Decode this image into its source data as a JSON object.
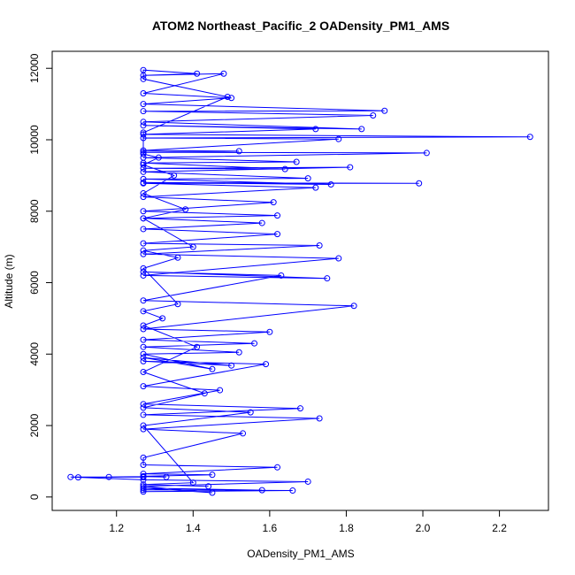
{
  "chart_data": {
    "type": "line",
    "title": "ATOM2 Northeast_Pacific_2 OADensity_PM1_AMS",
    "x_label": "OADensity_PM1_AMS",
    "y_label": "Altitude (m)",
    "color": "#0000ff",
    "markers": true,
    "xlim": [
      1.032,
      2.328
    ],
    "ylim": [
      -376,
      12476
    ],
    "xticks": [
      1.2,
      1.4,
      1.6,
      1.8,
      {
        "value": 2,
        "label": "2.0"
      },
      2.2
    ],
    "yticks": [
      0,
      2000,
      4000,
      6000,
      8000,
      10000,
      12000
    ],
    "x": [
      1.27,
      1.66,
      1.27,
      1.58,
      1.27,
      1.45,
      1.27,
      1.7,
      1.27,
      1.08,
      1.27,
      1.1,
      1.27,
      1.18,
      1.27,
      1.33,
      1.27,
      1.45,
      1.27,
      1.62,
      1.27,
      1.27,
      1.53,
      1.27,
      1.73,
      1.27,
      1.68,
      1.27,
      1.47,
      1.27,
      1.59,
      1.27,
      1.5,
      1.27,
      1.45,
      1.27,
      1.52,
      1.27,
      1.56,
      1.27,
      1.6,
      1.27,
      1.82,
      1.27,
      1.63,
      1.27,
      1.75,
      1.27,
      1.78,
      1.27,
      1.73,
      1.27,
      1.62,
      1.27,
      1.58,
      1.27,
      1.62,
      1.27,
      1.61,
      1.27,
      1.72,
      1.27,
      1.99,
      1.27,
      1.76,
      1.27,
      1.7,
      1.27,
      1.81,
      1.27,
      1.64,
      1.27,
      1.67,
      1.27,
      2.01,
      1.27,
      1.52,
      1.27,
      1.78,
      1.27,
      2.28,
      1.27,
      1.72,
      1.27,
      1.84,
      1.27,
      1.87,
      1.27,
      1.9,
      1.27,
      1.5,
      1.27,
      1.48,
      1.27,
      1.41,
      1.27,
      1.27,
      1.49,
      1.27,
      1.27,
      1.31,
      1.27,
      1.35,
      1.27,
      1.38,
      1.27,
      1.4,
      1.27,
      1.36,
      1.27,
      1.36,
      1.27,
      1.32,
      1.27,
      1.41,
      1.27,
      1.43,
      1.27,
      1.55,
      1.27,
      1.4,
      1.27,
      1.44
    ],
    "values": [
      150,
      180,
      200,
      190,
      250,
      120,
      300,
      430,
      480,
      560,
      560,
      550,
      560,
      560,
      570,
      560,
      580,
      620,
      650,
      830,
      900,
      1100,
      1780,
      1900,
      2200,
      2300,
      2480,
      2600,
      2990,
      3100,
      3720,
      3800,
      3680,
      3900,
      3580,
      4000,
      4050,
      4200,
      4300,
      4400,
      4620,
      4700,
      5350,
      5500,
      6200,
      6300,
      6120,
      6200,
      6680,
      6800,
      7040,
      7100,
      7360,
      7500,
      7670,
      7800,
      7880,
      8000,
      8250,
      8400,
      8660,
      8780,
      8780,
      8800,
      8750,
      8900,
      8920,
      9100,
      9230,
      9200,
      9180,
      9350,
      9380,
      9500,
      9630,
      9650,
      9680,
      9700,
      10020,
      10050,
      10080,
      10150,
      10300,
      10400,
      10300,
      10500,
      10680,
      10800,
      10810,
      11000,
      11170,
      11300,
      11850,
      11800,
      11850,
      11950,
      11700,
      11200,
      10200,
      9600,
      9500,
      9300,
      9000,
      8500,
      8050,
      7800,
      7000,
      6900,
      6700,
      6400,
      5400,
      5200,
      5000,
      4800,
      4200,
      3500,
      2900,
      2500,
      2370,
      2000,
      400,
      350,
      300
    ]
  }
}
